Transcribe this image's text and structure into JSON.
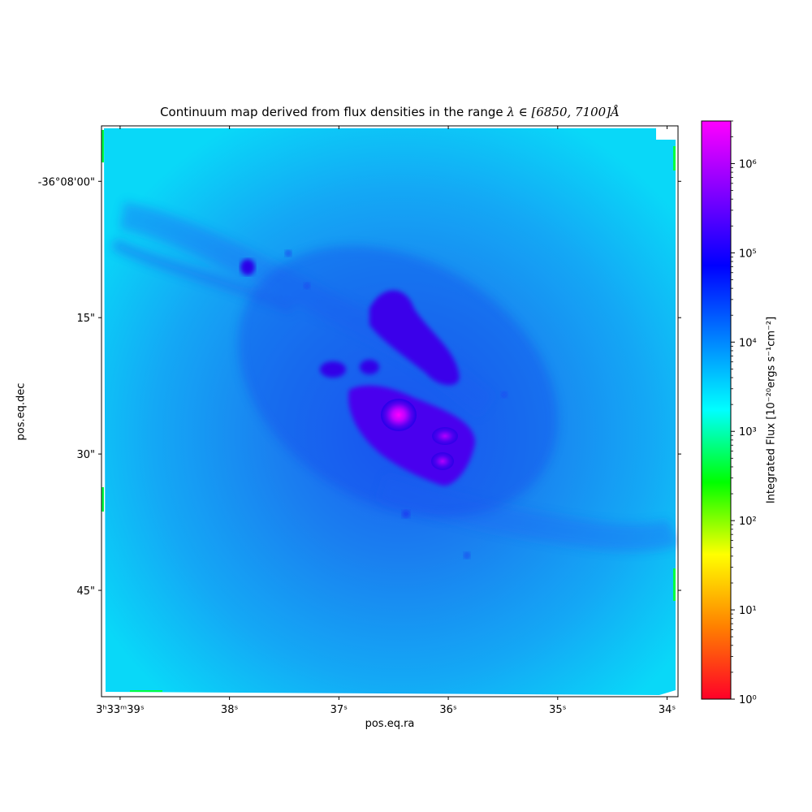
{
  "figure": {
    "title_prefix": "Continuum map derived from flux densities in the range ",
    "title_math": "λ ∈ [6850, 7100]Å",
    "xlabel": "pos.eq.ra",
    "ylabel": "pos.eq.dec",
    "colorbar_label": "Integrated Flux [10⁻²⁰ergs s⁻¹cm⁻²]"
  },
  "chart_data": {
    "type": "heatmap",
    "title": "Continuum map derived from flux densities in the range λ∈[6850, 7100]Å",
    "xlabel": "pos.eq.ra",
    "ylabel": "pos.eq.dec",
    "x_ticks": [
      {
        "value": 39,
        "label": "3ʰ33ᵐ39ˢ"
      },
      {
        "value": 38,
        "label": "38ˢ"
      },
      {
        "value": 37,
        "label": "37ˢ"
      },
      {
        "value": 36,
        "label": "36ˢ"
      },
      {
        "value": 35,
        "label": "35ˢ"
      },
      {
        "value": 34,
        "label": "34ˢ"
      }
    ],
    "x_range_seconds": [
      39.17,
      33.9
    ],
    "y_ticks": [
      {
        "value": 0,
        "label": "-36°08'00\""
      },
      {
        "value": 15,
        "label": "15\""
      },
      {
        "value": 30,
        "label": "30\""
      },
      {
        "value": 45,
        "label": "45\""
      }
    ],
    "y_range_arcsec": [
      -6.1,
      56.7
    ],
    "colorbar": {
      "scale": "log",
      "min": 1,
      "max": 3000000,
      "ticks": [
        {
          "value": 1,
          "label": "10⁰"
        },
        {
          "value": 10,
          "label": "10¹"
        },
        {
          "value": 100,
          "label": "10²"
        },
        {
          "value": 1000,
          "label": "10³"
        },
        {
          "value": 10000,
          "label": "10⁴"
        },
        {
          "value": 100000,
          "label": "10⁵"
        },
        {
          "value": 1000000,
          "label": "10⁶"
        }
      ],
      "colormap": [
        "#ff0028",
        "#ff8000",
        "#ffff00",
        "#00ff00",
        "#00ffff",
        "#0080ff",
        "#0000ff",
        "#8000ff",
        "#ff00ff"
      ]
    },
    "grid": false,
    "features": {
      "background_flux": 20000,
      "nucleus_peak_flux": 2000000,
      "bar_flux": 200000
    }
  }
}
